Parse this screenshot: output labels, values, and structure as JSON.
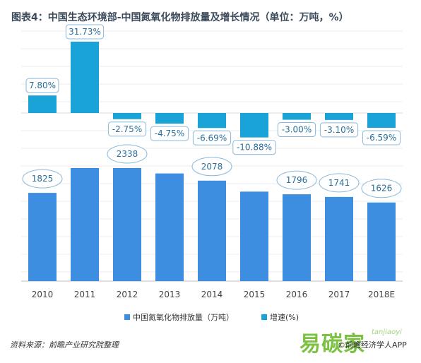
{
  "title": "图表4：中国生态环境部-中国氮氧化物排放量及增长情况（单位：万吨，%）",
  "source": "资料来源：前瞻产业研究院整理",
  "watermark_logo": "易碳家",
  "watermark_logo_sub": "tanjiaoyi",
  "brand": "©前瞻经济学人APP",
  "colors": {
    "bar": "#3d8de0",
    "growth": "#1aa3d6"
  },
  "chart_data": {
    "type": "bar",
    "categories": [
      "2010",
      "2011",
      "2012",
      "2013",
      "2014",
      "2015",
      "2016",
      "2017",
      "2018E"
    ],
    "series": [
      {
        "name": "中国氮氧化物排放量（万吨）",
        "values": [
          1825,
          2338,
          2338,
          2227,
          2078,
          1851,
          1796,
          1741,
          1626
        ],
        "labels": [
          "1825",
          "",
          "2338",
          "",
          "2078",
          "",
          "1796",
          "1741",
          "1626"
        ]
      },
      {
        "name": "增速(%)",
        "values": [
          7.8,
          31.73,
          -2.75,
          -4.75,
          -6.69,
          -10.88,
          -3.0,
          -3.1,
          -6.59
        ],
        "labels": [
          "7.80%",
          "31.73%",
          "-2.75%",
          "-4.75%",
          "-6.69%",
          "-10.88%",
          "-3.00%",
          "-3.10%",
          "-6.59%"
        ]
      }
    ],
    "legend_position": "bottom"
  }
}
